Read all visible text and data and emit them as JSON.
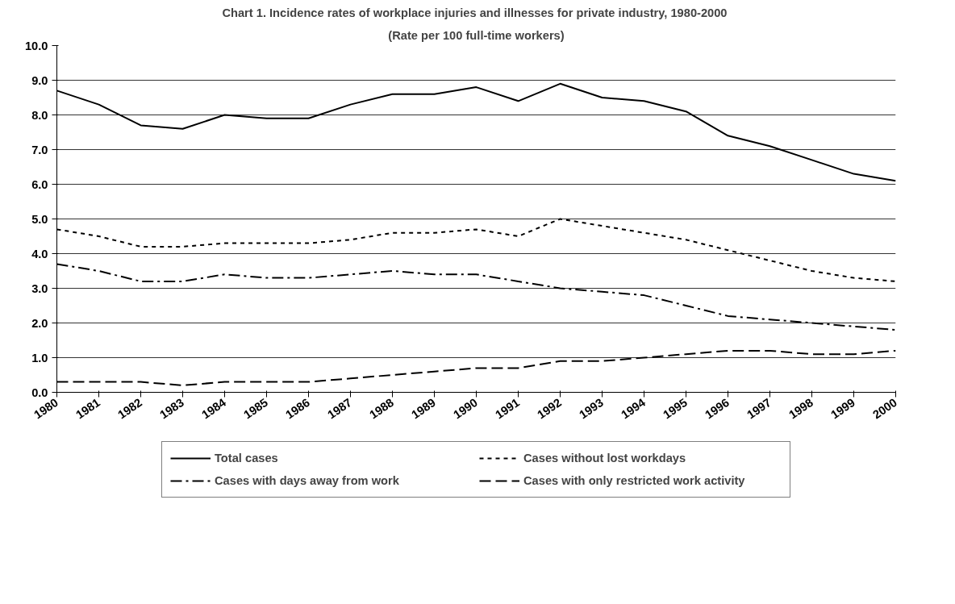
{
  "chart_data": {
    "type": "line",
    "title": "Chart 1.  Incidence rates of workplace injuries and illnesses for private industry, 1980-2000",
    "subtitle": "(Rate per 100 full-time workers)",
    "categories": [
      "1980",
      "1981",
      "1982",
      "1983",
      "1984",
      "1985",
      "1986",
      "1987",
      "1988",
      "1989",
      "1990",
      "1991",
      "1992",
      "1993",
      "1994",
      "1995",
      "1996",
      "1997",
      "1998",
      "1999",
      "2000"
    ],
    "ylim": [
      0,
      10
    ],
    "yticks": [
      {
        "value": 0,
        "label": "0.0"
      },
      {
        "value": 1,
        "label": "1.0"
      },
      {
        "value": 2,
        "label": "2.0"
      },
      {
        "value": 3,
        "label": "3.0"
      },
      {
        "value": 4,
        "label": "4.0"
      },
      {
        "value": 5,
        "label": "5.0"
      },
      {
        "value": 6,
        "label": "6.0"
      },
      {
        "value": 7,
        "label": "7.0"
      },
      {
        "value": 8,
        "label": "8.0"
      },
      {
        "value": 9,
        "label": "9.0"
      },
      {
        "value": 10,
        "label": "10.0"
      }
    ],
    "grid": "y",
    "legend": "bottom",
    "marker": "none",
    "series": [
      {
        "name": "Total cases",
        "color": "#000000",
        "line_style": "solid",
        "values": [
          8.7,
          8.3,
          7.7,
          7.6,
          8.0,
          7.9,
          7.9,
          8.3,
          8.6,
          8.6,
          8.8,
          8.4,
          8.9,
          8.5,
          8.4,
          8.1,
          7.4,
          7.1,
          6.7,
          6.3,
          6.1
        ]
      },
      {
        "name": "Cases without lost workdays",
        "color": "#000000",
        "line_style": "dotted",
        "values": [
          4.7,
          4.5,
          4.2,
          4.2,
          4.3,
          4.3,
          4.3,
          4.4,
          4.6,
          4.6,
          4.7,
          4.5,
          5.0,
          4.8,
          4.6,
          4.4,
          4.1,
          3.8,
          3.5,
          3.3,
          3.2
        ]
      },
      {
        "name": "Cases with days away from work",
        "color": "#000000",
        "line_style": "dashdot",
        "values": [
          3.7,
          3.5,
          3.2,
          3.2,
          3.4,
          3.3,
          3.3,
          3.4,
          3.5,
          3.4,
          3.4,
          3.2,
          3.0,
          2.9,
          2.8,
          2.5,
          2.2,
          2.1,
          2.0,
          1.9,
          1.8
        ]
      },
      {
        "name": "Cases with only restricted work activity",
        "color": "#000000",
        "line_style": "dashed",
        "values": [
          0.3,
          0.3,
          0.3,
          0.2,
          0.3,
          0.3,
          0.3,
          0.4,
          0.5,
          0.6,
          0.7,
          0.7,
          0.9,
          0.9,
          1.0,
          1.1,
          1.2,
          1.2,
          1.1,
          1.1,
          1.2
        ]
      }
    ]
  }
}
